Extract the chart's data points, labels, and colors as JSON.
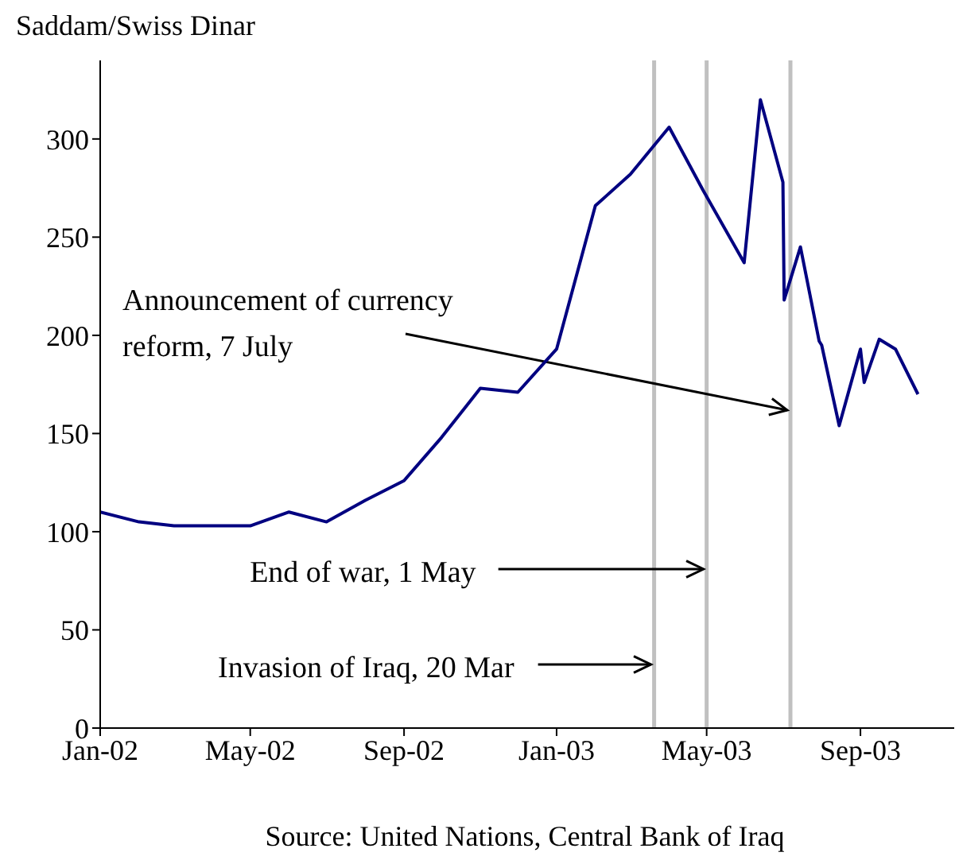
{
  "chart_data": {
    "type": "line",
    "ylabel": "Saddam/Swiss Dinar",
    "annotations": [
      "Source: United Nations, Central Bank of Iraq"
    ],
    "xlim": [
      "2002-01-01",
      "2003-11-15"
    ],
    "ylim": [
      0,
      340
    ],
    "yticks": [
      0,
      50,
      100,
      150,
      200,
      250,
      300
    ],
    "xticks": [
      {
        "value": "2002-01-01",
        "label": "Jan-02"
      },
      {
        "value": "2002-05-01",
        "label": "May-02"
      },
      {
        "value": "2002-09-01",
        "label": "Sep-02"
      },
      {
        "value": "2003-01-01",
        "label": "Jan-03"
      },
      {
        "value": "2003-05-01",
        "label": "May-03"
      },
      {
        "value": "2003-09-01",
        "label": "Sep-03"
      }
    ],
    "marker": "none",
    "line_style": "solid",
    "series": [
      {
        "color": "#000080",
        "x": [
          "2002-01-01",
          "2002-02-01",
          "2002-03-01",
          "2002-05-01",
          "2002-06-01",
          "2002-07-01",
          "2002-08-01",
          "2002-09-01",
          "2002-10-01",
          "2002-11-01",
          "2002-12-01",
          "2003-01-01",
          "2003-02-01",
          "2003-03-01",
          "2003-04-01",
          "2003-04-28",
          "2003-05-31",
          "2003-06-13",
          "2003-07-01",
          "2003-07-02",
          "2003-07-15",
          "2003-07-30",
          "2003-08-01",
          "2003-08-15",
          "2003-09-01",
          "2003-09-04",
          "2003-09-16",
          "2003-09-29",
          "2003-10-17"
        ],
        "values": [
          110,
          105,
          103,
          103,
          110,
          105,
          116,
          126,
          148,
          173,
          171,
          193,
          266,
          282,
          306,
          274,
          237,
          320,
          278,
          218,
          245,
          197,
          195,
          154,
          193,
          176,
          198,
          193,
          170
        ]
      }
    ],
    "ref_lines": [
      {
        "axis": "x",
        "value": "2003-03-20",
        "label": "Invasion of Iraq, 20 Mar",
        "color": "#c0c0c0"
      },
      {
        "axis": "x",
        "value": "2003-05-01",
        "label": "End of war, 1 May",
        "color": "#c0c0c0"
      },
      {
        "axis": "x",
        "value": "2003-07-07",
        "label": "Announcement of currency\nreform, 7 July",
        "color": "#c0c0c0"
      }
    ]
  }
}
